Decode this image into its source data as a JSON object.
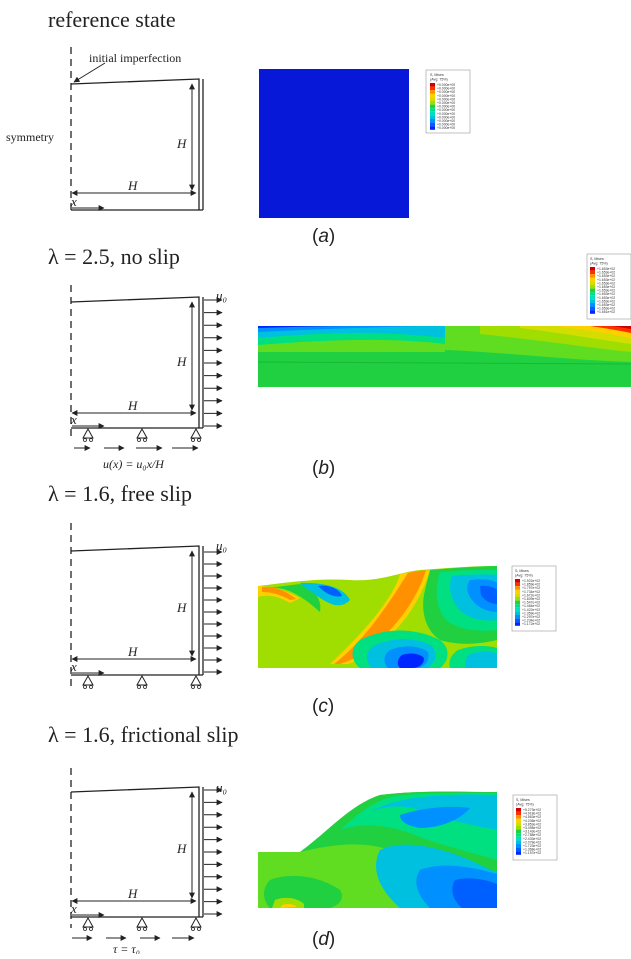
{
  "colors": {
    "contour": [
      "#0026ff",
      "#0060ff",
      "#0090ff",
      "#00c0e0",
      "#00e0c0",
      "#00e080",
      "#20d040",
      "#60dd20",
      "#a0dd00",
      "#d4dd00",
      "#ffd000",
      "#ff9000",
      "#ff3000",
      "#d00000"
    ],
    "reference_fill": "#0818d8"
  },
  "panels": [
    {
      "id": "a",
      "title": "reference state",
      "caption": "(a)",
      "annotations": {
        "imperfection": "initial imperfection",
        "symmetry": "symmetry",
        "height": "H",
        "width": "H",
        "x_axis": "x"
      },
      "legend": {
        "title": "S, Mises",
        "subtitle": "(Avg: 75%)",
        "values": [
          "+0.000e+00",
          "+0.000e+00",
          "+0.000e+00",
          "+0.000e+00",
          "+0.000e+00",
          "+0.000e+00",
          "+0.000e+00",
          "+0.000e+00",
          "+0.000e+00",
          "+0.000e+00",
          "+0.000e+00",
          "+0.000e+00",
          "+0.000e+00"
        ]
      }
    },
    {
      "id": "b",
      "title": "λ = 2.5, no slip",
      "caption": "(b)",
      "annotations": {
        "u0": "u₀",
        "height": "H",
        "width": "H",
        "x_axis": "x",
        "boundary": "u(x) = u₀x/H"
      },
      "legend": {
        "title": "S, Mises",
        "subtitle": "(Avg: 75%)",
        "values": [
          "+1.653e+02",
          "+1.653e+02",
          "+1.653e+02",
          "+1.653e+02",
          "+1.653e+02",
          "+1.653e+02",
          "+1.653e+02",
          "+1.653e+02",
          "+1.653e+02",
          "+1.653e+02",
          "+1.653e+02",
          "+1.653e+02",
          "+1.651e+02"
        ]
      }
    },
    {
      "id": "c",
      "title": "λ = 1.6, free slip",
      "caption": "(c)",
      "annotations": {
        "u0": "u₀",
        "height": "H",
        "width": "H",
        "x_axis": "x"
      },
      "legend": {
        "title": "S, Mises",
        "subtitle": "(Avg: 75%)",
        "values": [
          "+1.922e+02",
          "+1.859e+02",
          "+1.797e+02",
          "+1.734e+02",
          "+1.672e+02",
          "+1.609e+02",
          "+1.547e+02",
          "+1.484e+02",
          "+1.422e+02",
          "+1.359e+02",
          "+1.297e+02",
          "+1.234e+02",
          "+1.172e+02"
        ]
      }
    },
    {
      "id": "d",
      "title": "λ = 1.6, frictional slip",
      "caption": "(d)",
      "annotations": {
        "u0": "u₀",
        "height": "H",
        "width": "H",
        "x_axis": "x",
        "boundary": "τ = τ₀"
      },
      "legend": {
        "title": "S, Mises",
        "subtitle": "(Avg: 75%)",
        "values": [
          "+5.273e+02",
          "+4.918e+02",
          "+4.563e+02",
          "+4.208e+02",
          "+3.853e+02",
          "+3.498e+02",
          "+3.143e+02",
          "+2.788e+02",
          "+2.433e+02",
          "+2.078e+02",
          "+1.723e+02",
          "+1.368e+02",
          "+1.197e+02"
        ]
      }
    }
  ]
}
